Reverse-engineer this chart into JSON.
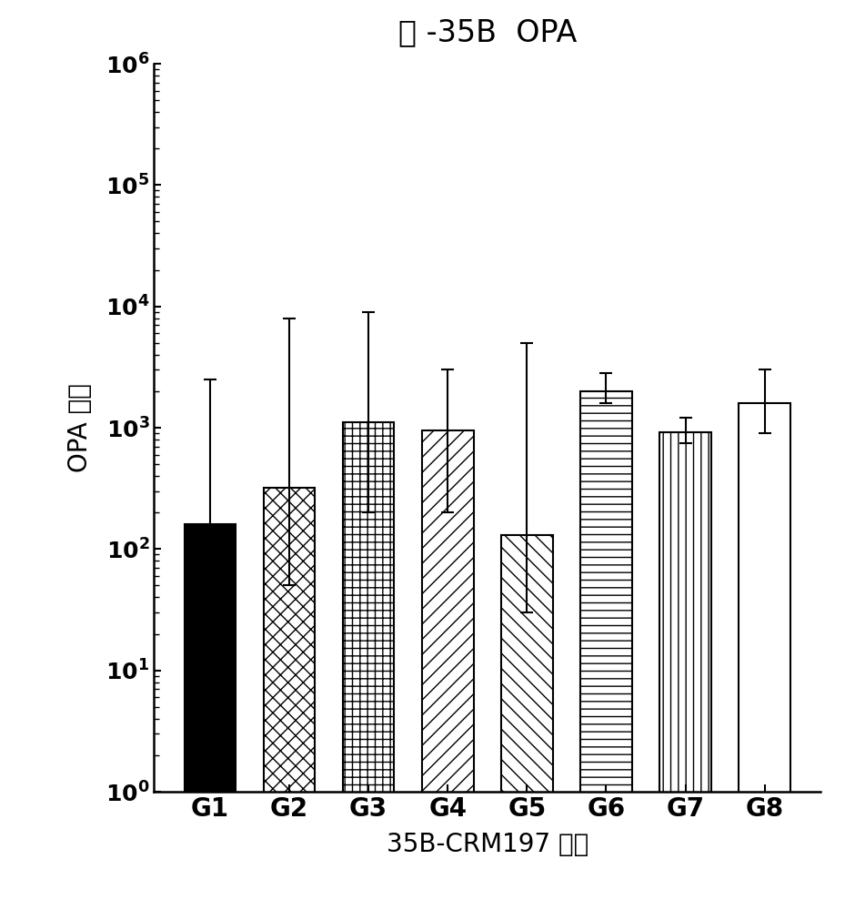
{
  "title": "抗 -35B  OPA",
  "xlabel": "35B-CRM197 制剂",
  "ylabel": "OPA 滤度",
  "categories": [
    "G1",
    "G2",
    "G3",
    "G4",
    "G5",
    "G6",
    "G7",
    "G8"
  ],
  "bar_values": [
    160,
    320,
    1100,
    950,
    130,
    2000,
    920,
    1600
  ],
  "error_upper": [
    2500,
    8000,
    9000,
    3000,
    5000,
    2800,
    1200,
    3000
  ],
  "error_lower": [
    30,
    50,
    200,
    200,
    30,
    1600,
    750,
    900
  ],
  "hatch_patterns": [
    "",
    "xx",
    "++",
    "//",
    "\\\\",
    "--",
    "||",
    ""
  ],
  "face_colors": [
    "black",
    "white",
    "white",
    "white",
    "white",
    "white",
    "white",
    "white"
  ],
  "edge_colors": [
    "black",
    "black",
    "black",
    "black",
    "black",
    "black",
    "black",
    "black"
  ],
  "ylim": [
    1,
    1000000
  ],
  "title_fontsize": 24,
  "label_fontsize": 20,
  "tick_fontsize": 18,
  "xtick_fontsize": 20,
  "bar_width": 0.65,
  "background_color": "#ffffff",
  "figsize": [
    9.4,
    10.0
  ],
  "dpi": 100
}
